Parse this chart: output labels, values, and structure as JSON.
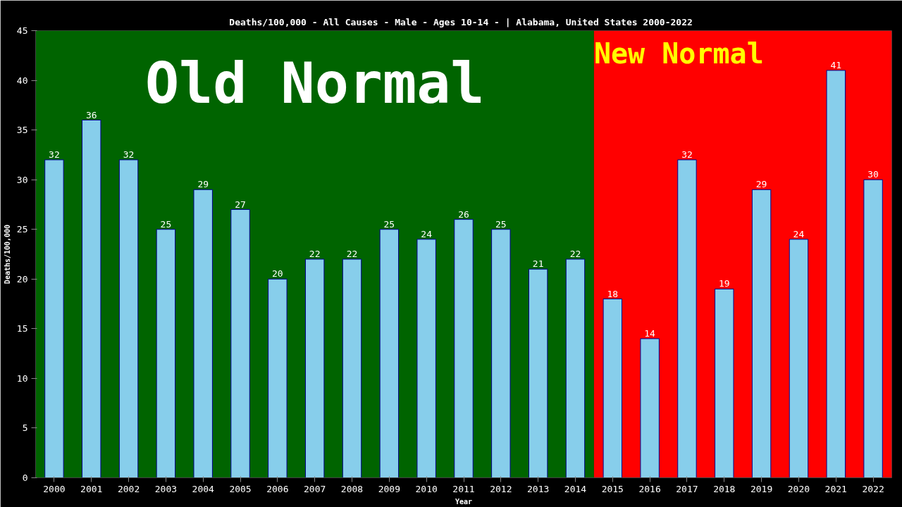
{
  "chart_data": {
    "type": "bar",
    "title": "Deaths/100,000 - All Causes - Male - Ages 10-14 -  | Alabama, United States 2000-2022",
    "xlabel": "Year",
    "ylabel": "Deaths/100,000",
    "x": [
      2000,
      2001,
      2002,
      2003,
      2004,
      2005,
      2006,
      2007,
      2008,
      2009,
      2010,
      2011,
      2012,
      2013,
      2014,
      2015,
      2016,
      2017,
      2018,
      2019,
      2020,
      2021,
      2022
    ],
    "values": [
      32,
      36,
      32,
      25,
      29,
      27,
      20,
      22,
      22,
      25,
      24,
      26,
      25,
      21,
      22,
      18,
      14,
      32,
      19,
      29,
      24,
      41,
      30
    ],
    "color": "#87ceeb",
    "data_labels": true,
    "xlim": [
      1999.5,
      2022.5
    ],
    "xticks": [
      2000,
      2001,
      2002,
      2003,
      2004,
      2005,
      2006,
      2007,
      2008,
      2009,
      2010,
      2011,
      2012,
      2013,
      2014,
      2015,
      2016,
      2017,
      2018,
      2019,
      2020,
      2021,
      2022
    ],
    "ylim": [
      0,
      45
    ],
    "yticks": [
      0,
      5,
      10,
      15,
      20,
      25,
      30,
      35,
      40,
      45
    ],
    "bands": [
      {
        "axis": "x",
        "from": 1999.5,
        "to": 2014.5,
        "label": "Old Normal",
        "color": "#006400"
      },
      {
        "axis": "x",
        "from": 2014.5,
        "to": 2022.5,
        "label": "New Normal",
        "color": "#ff0000"
      }
    ],
    "grid": false
  }
}
